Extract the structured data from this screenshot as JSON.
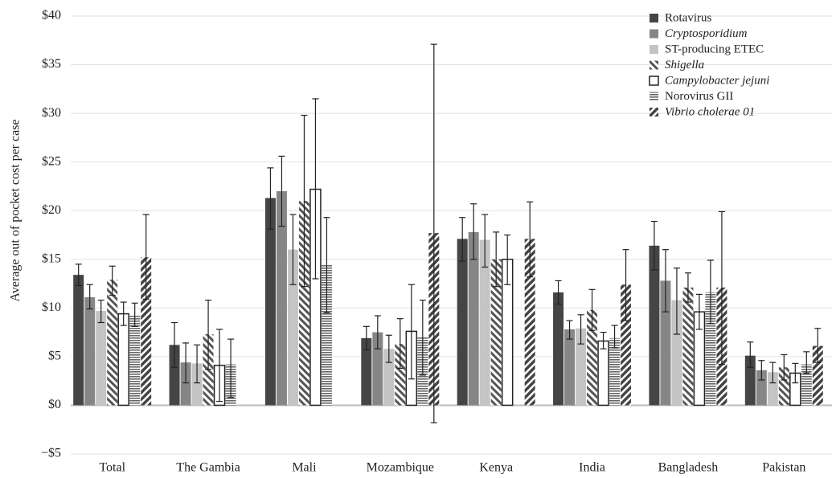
{
  "chart_data": {
    "type": "bar",
    "y_label": "Average out of pocket cost per case",
    "categories": [
      "Total",
      "The Gambia",
      "Mali",
      "Mozambique",
      "Kenya",
      "India",
      "Bangladesh",
      "Pakistan"
    ],
    "ylim": [
      -5,
      40
    ],
    "yticks": [
      {
        "value": -5,
        "label": "−$5"
      },
      {
        "value": 0,
        "label": "$0"
      },
      {
        "value": 5,
        "label": "$5"
      },
      {
        "value": 10,
        "label": "$10"
      },
      {
        "value": 15,
        "label": "$15"
      },
      {
        "value": 20,
        "label": "$20"
      },
      {
        "value": 25,
        "label": "$25"
      },
      {
        "value": 30,
        "label": "$30"
      },
      {
        "value": 35,
        "label": "$35"
      },
      {
        "value": 40,
        "label": "$40"
      }
    ],
    "grid": true,
    "legend": "top-right",
    "series": [
      {
        "name": "Rotavirus",
        "color": "#454545",
        "pattern": "solid",
        "italic": false,
        "values": [
          13.4,
          6.2,
          21.3,
          6.9,
          17.1,
          11.6,
          16.4,
          5.1
        ],
        "ci_low": [
          12.3,
          3.9,
          18.1,
          5.7,
          14.8,
          10.4,
          13.9,
          3.9
        ],
        "ci_high": [
          14.5,
          8.5,
          24.4,
          8.1,
          19.3,
          12.8,
          18.9,
          6.5
        ]
      },
      {
        "name": "Cryptosporidium",
        "color": "#868686",
        "pattern": "solid",
        "italic": true,
        "values": [
          11.1,
          4.4,
          22.0,
          7.5,
          17.8,
          7.8,
          12.8,
          3.6
        ],
        "ci_low": [
          9.9,
          2.3,
          18.4,
          5.8,
          15.0,
          6.8,
          9.6,
          2.6
        ],
        "ci_high": [
          12.4,
          6.4,
          25.6,
          9.2,
          20.7,
          8.7,
          16.0,
          4.6
        ]
      },
      {
        "name": "ST-producing ETEC",
        "color": "#c4c4c4",
        "pattern": "solid",
        "italic": false,
        "values": [
          9.7,
          4.3,
          16.0,
          5.8,
          17.0,
          7.9,
          10.8,
          3.4
        ],
        "ci_low": [
          8.5,
          2.3,
          12.4,
          4.4,
          14.2,
          6.3,
          7.3,
          2.3
        ],
        "ci_high": [
          10.8,
          6.2,
          19.6,
          7.2,
          19.6,
          9.3,
          14.1,
          4.4
        ]
      },
      {
        "name": "Shigella",
        "color": "#555555",
        "pattern": "diagonal",
        "italic": true,
        "values": [
          12.9,
          7.3,
          21.0,
          6.3,
          15.0,
          9.8,
          12.1,
          3.9
        ],
        "ci_low": [
          11.3,
          3.7,
          12.2,
          3.8,
          12.2,
          7.7,
          10.6,
          2.6
        ],
        "ci_high": [
          14.3,
          10.8,
          29.8,
          8.9,
          17.8,
          11.9,
          13.6,
          5.2
        ]
      },
      {
        "name": "Campylobacter jejuni",
        "color": "#222222",
        "pattern": "outline",
        "italic": true,
        "values": [
          9.4,
          4.1,
          22.2,
          7.6,
          15.0,
          6.6,
          9.6,
          3.3
        ],
        "ci_low": [
          8.2,
          0.4,
          13.0,
          2.7,
          12.4,
          5.8,
          7.8,
          2.3
        ],
        "ci_high": [
          10.6,
          7.8,
          31.5,
          12.4,
          17.5,
          7.5,
          11.4,
          4.3
        ]
      },
      {
        "name": "Norovirus GII",
        "color": "#666666",
        "pattern": "horizontal",
        "italic": false,
        "values": [
          9.2,
          4.2,
          14.4,
          7.0,
          null,
          6.9,
          11.6,
          4.2
        ],
        "ci_low": [
          8.1,
          0.8,
          9.5,
          3.1,
          null,
          5.9,
          8.4,
          3.3
        ],
        "ci_high": [
          10.5,
          6.8,
          19.3,
          10.8,
          null,
          8.2,
          14.9,
          5.5
        ]
      },
      {
        "name": "Vibrio cholerae 01",
        "color": "#444444",
        "pattern": "hatch",
        "italic": true,
        "values": [
          15.2,
          null,
          null,
          17.7,
          17.1,
          12.4,
          12.1,
          6.1
        ],
        "ci_low": [
          10.9,
          null,
          null,
          -1.8,
          13.2,
          8.7,
          4.2,
          4.4
        ],
        "ci_high": [
          19.6,
          null,
          null,
          37.1,
          20.9,
          16.0,
          19.9,
          7.9
        ]
      }
    ]
  }
}
